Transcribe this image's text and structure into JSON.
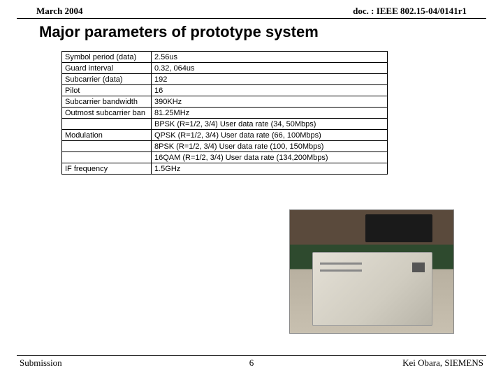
{
  "header": {
    "date": "March 2004",
    "docref": "doc. : IEEE 802.15-04/0141r1"
  },
  "title": "Major parameters of prototype system",
  "table": {
    "rows": [
      {
        "label": "Symbol period (data)",
        "value": "2.56us"
      },
      {
        "label": "Guard interval",
        "value": "0.32, 064us"
      },
      {
        "label": "Subcarrier (data)",
        "value": "192"
      },
      {
        "label": "Pilot",
        "value": "16"
      },
      {
        "label": "Subcarrier bandwidth",
        "value": "390KHz"
      },
      {
        "label": "Outmost subcarrier ban",
        "value": "81.25MHz"
      },
      {
        "label": "",
        "value": "BPSK (R=1/2, 3/4)   User data rate (34, 50Mbps)"
      },
      {
        "label": "Modulation",
        "value": "QPSK (R=1/2, 3/4)   User data rate (66, 100Mbps)"
      },
      {
        "label": "",
        "value": "8PSK (R=1/2, 3/4)   User data rate (100, 150Mbps)"
      },
      {
        "label": "",
        "value": "16QAM (R=1/2, 3/4)   User data rate (134,200Mbps)"
      },
      {
        "label": "IF frequency",
        "value": "1.5GHz"
      }
    ]
  },
  "footer": {
    "left": "Submission",
    "page": "6",
    "right": "Kei Obara, SIEMENS"
  },
  "colors": {
    "border": "#000000",
    "bg": "#ffffff"
  }
}
